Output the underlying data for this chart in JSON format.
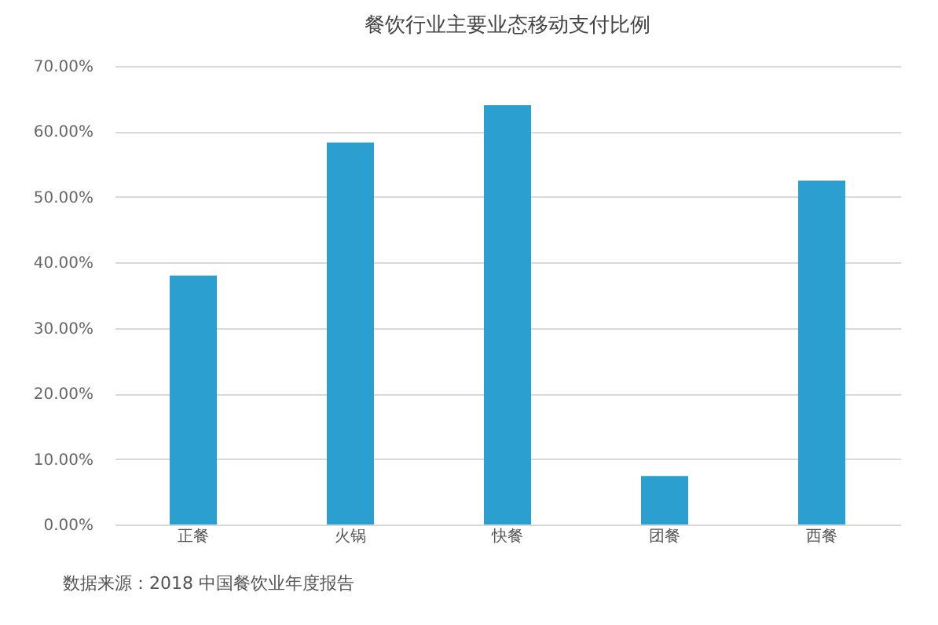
{
  "chart_data": {
    "type": "bar",
    "title": "餐饮行业主要业态移动支付比例",
    "categories": [
      "正餐",
      "火锅",
      "快餐",
      "团餐",
      "西餐"
    ],
    "values": [
      38,
      58.3,
      64,
      7.4,
      52.5
    ],
    "color": "#2b9fd0",
    "ylim": [
      0,
      70
    ],
    "yticks": [
      {
        "value": 0,
        "label": "0.00%"
      },
      {
        "value": 10,
        "label": "10.00%"
      },
      {
        "value": 20,
        "label": "20.00%"
      },
      {
        "value": 30,
        "label": "30.00%"
      },
      {
        "value": 40,
        "label": "40.00%"
      },
      {
        "value": 50,
        "label": "50.00%"
      },
      {
        "value": 60,
        "label": "60.00%"
      },
      {
        "value": 70,
        "label": "70.00%"
      }
    ],
    "grid": "y",
    "annotations": [
      "数据来源：2018 中国餐饮业年度报告"
    ]
  }
}
